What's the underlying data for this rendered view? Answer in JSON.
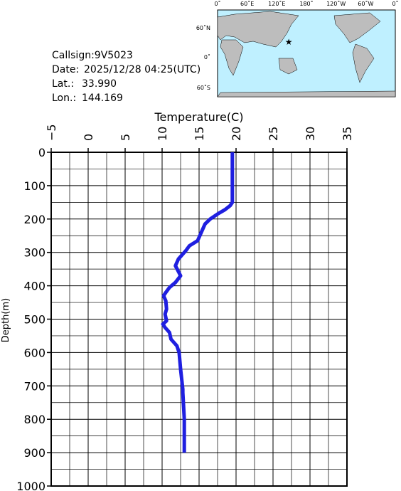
{
  "info": {
    "callsign": "Callsign:9V5023",
    "date_label": "Date:",
    "date": "2025/12/28 04:25(UTC)",
    "lat_label": "Lat.:",
    "lat": "33.990",
    "lon_label": "Lon.:",
    "lon": "144.169"
  },
  "map": {
    "lon_labels": [
      "0˚",
      "60˚E",
      "120˚E",
      "180˚",
      "120˚W",
      "60˚W",
      "0˚"
    ],
    "lat_labels": [
      "60˚N",
      "0˚",
      "60˚S"
    ]
  },
  "chart_data": {
    "type": "line",
    "x_label": "Temperature(C)",
    "y_label": "Depth(m)",
    "xlim": [
      -5,
      35
    ],
    "xticks": [
      {
        "value": -5,
        "label": "−5"
      },
      0,
      5,
      10,
      15,
      20,
      25,
      30,
      35
    ],
    "ylim": [
      0,
      1000
    ],
    "yticks": [
      0,
      100,
      200,
      300,
      400,
      500,
      600,
      700,
      800,
      900,
      1000
    ],
    "grid": true,
    "series": [
      {
        "color": "#1f1fe0",
        "depth": [
          0,
          150,
          160,
          172,
          185,
          200,
          215,
          240,
          265,
          280,
          295,
          320,
          340,
          370,
          390,
          405,
          420,
          430,
          445,
          470,
          485,
          505,
          515,
          525,
          540,
          560,
          580,
          600,
          650,
          710,
          720,
          800,
          900
        ],
        "values": [
          19.5,
          19.5,
          19.2,
          18.5,
          17.5,
          16.5,
          15.8,
          15.3,
          14.8,
          13.7,
          13.2,
          12.2,
          11.8,
          12.5,
          11.8,
          11,
          10.5,
          10.2,
          10.5,
          10.6,
          10.4,
          10.6,
          10.1,
          10.4,
          11,
          11.2,
          12,
          12.3,
          12.5,
          12.8,
          12.8,
          13,
          13
        ]
      }
    ]
  }
}
